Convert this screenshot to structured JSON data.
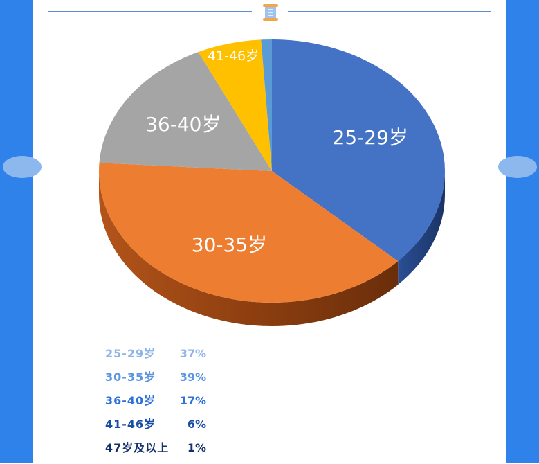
{
  "colors": {
    "side_bar": "#2f82ea",
    "side_dot": "#8cb8ee",
    "divider_line": "#5a8fd0"
  },
  "header": {
    "icon": "scroll-icon"
  },
  "chart_data": {
    "type": "pie",
    "style": "3d",
    "slices": [
      {
        "label": "25-29岁",
        "value": 37,
        "color": "#4472c4",
        "slice_label": "25-29岁"
      },
      {
        "label": "30-35岁",
        "value": 39,
        "color": "#ed7d31",
        "slice_label": "30-35岁"
      },
      {
        "label": "36-40岁",
        "value": 17,
        "color": "#a5a5a5",
        "slice_label": "36-40岁"
      },
      {
        "label": "41-46岁",
        "value": 6,
        "color": "#ffc000",
        "slice_label": "41-46岁"
      },
      {
        "label": "47岁及以上",
        "value": 1,
        "color": "#5b9bd5",
        "slice_label": ""
      }
    ]
  },
  "legend": {
    "rows": [
      {
        "label": "25-29岁",
        "pct": "37%",
        "color": "#8fb4e6"
      },
      {
        "label": "30-35岁",
        "pct": "39%",
        "color": "#5b95e0"
      },
      {
        "label": "36-40岁",
        "pct": "17%",
        "color": "#2f72d6"
      },
      {
        "label": "41-46岁",
        "pct": "6%",
        "color": "#1a4ea6"
      },
      {
        "label": "47岁及以上",
        "pct": "1%",
        "color": "#12306a"
      }
    ]
  }
}
